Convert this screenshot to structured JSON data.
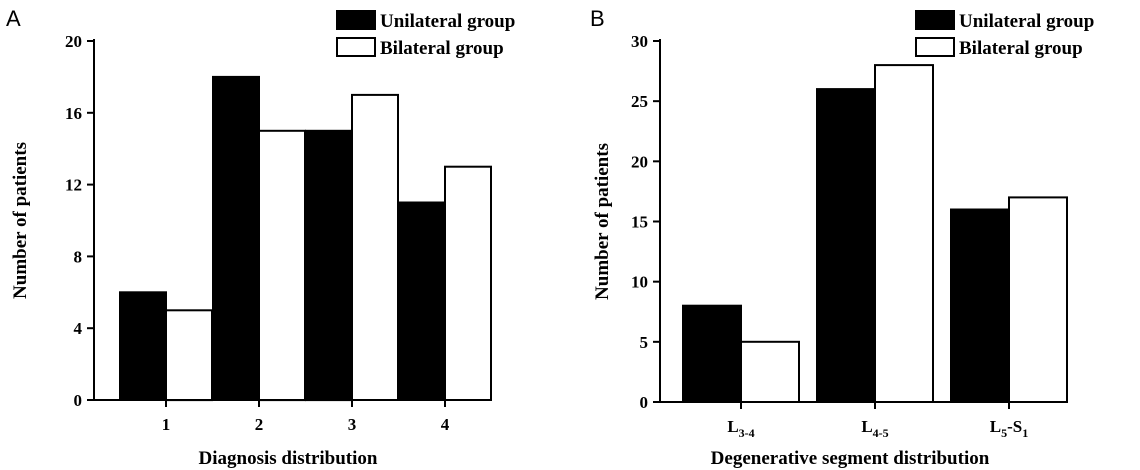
{
  "panel_labels": [
    "A",
    "B"
  ],
  "chart_data": [
    {
      "type": "bar",
      "panel": "A",
      "categories": [
        "1",
        "2",
        "3",
        "4"
      ],
      "series": [
        {
          "name": "Unilateral group",
          "values": [
            6,
            18,
            15,
            11
          ],
          "color": "#000000"
        },
        {
          "name": "Bilateral group",
          "values": [
            5,
            15,
            17,
            13
          ],
          "color": "#ffffff"
        }
      ],
      "xlabel": "Diagnosis distribution",
      "ylabel": "Number of patients",
      "ylim": [
        0,
        20
      ],
      "yticks": [
        "0",
        "4",
        "8",
        "12",
        "16",
        "20"
      ],
      "legend_position": "top-right",
      "grid": false
    },
    {
      "type": "bar",
      "panel": "B",
      "categories": [
        {
          "parts": [
            {
              "t": "L",
              "s": false
            },
            {
              "t": "3-4",
              "s": true
            }
          ]
        },
        {
          "parts": [
            {
              "t": "L",
              "s": false
            },
            {
              "t": "4-5",
              "s": true
            }
          ]
        },
        {
          "parts": [
            {
              "t": "L",
              "s": false
            },
            {
              "t": "5",
              "s": true
            },
            {
              "t": "-S",
              "s": false
            },
            {
              "t": "1",
              "s": true
            }
          ]
        }
      ],
      "series": [
        {
          "name": "Unilateral group",
          "values": [
            8,
            26,
            16
          ],
          "color": "#000000"
        },
        {
          "name": "Bilateral group",
          "values": [
            5,
            28,
            17
          ],
          "color": "#ffffff"
        }
      ],
      "xlabel": "Degenerative segment distribution",
      "ylabel": "Number of patients",
      "ylim": [
        0,
        30
      ],
      "yticks": [
        "0",
        "5",
        "10",
        "15",
        "20",
        "25",
        "30"
      ],
      "legend_position": "top-right",
      "grid": false
    }
  ]
}
